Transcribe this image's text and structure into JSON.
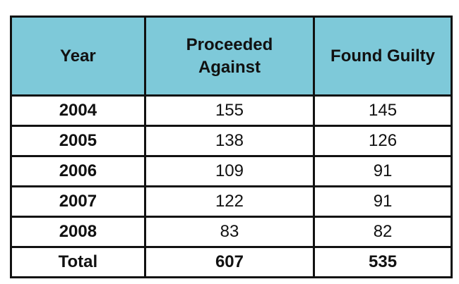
{
  "table": {
    "header": [
      "Year",
      "Proceeded Against",
      "Found Guilty"
    ],
    "rows": [
      [
        "2004",
        155,
        145
      ],
      [
        "2005",
        138,
        126
      ],
      [
        "2006",
        109,
        91
      ],
      [
        "2007",
        122,
        91
      ],
      [
        "2008",
        83,
        82
      ]
    ],
    "total": [
      "Total",
      607,
      535
    ]
  }
}
